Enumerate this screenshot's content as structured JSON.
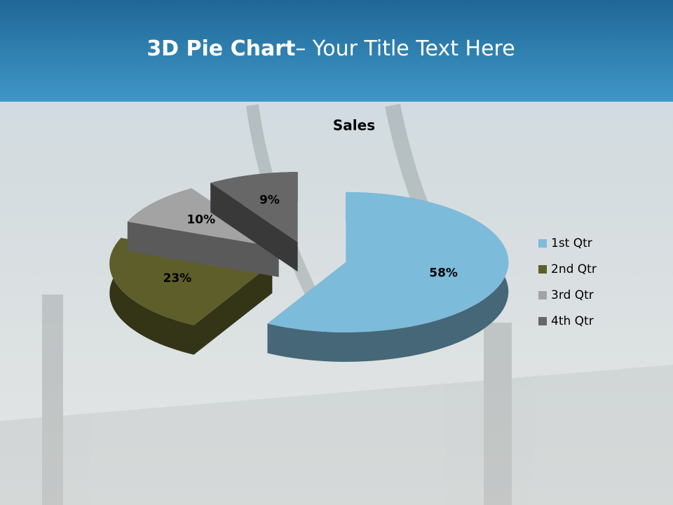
{
  "slide": {
    "title_bold": "3D Pie Chart",
    "title_rest": "– Your Title Text Here"
  },
  "chart_data": {
    "type": "pie",
    "title": "Sales",
    "categories": [
      "1st Qtr",
      "2nd Qtr",
      "3rd Qtr",
      "4th Qtr"
    ],
    "values": [
      58,
      23,
      10,
      9
    ],
    "value_labels": [
      "58%",
      "23%",
      "10%",
      "9%"
    ],
    "colors": [
      "#7dbbdb",
      "#5e5e2a",
      "#a3a3a3",
      "#676767"
    ],
    "legend": "right"
  }
}
